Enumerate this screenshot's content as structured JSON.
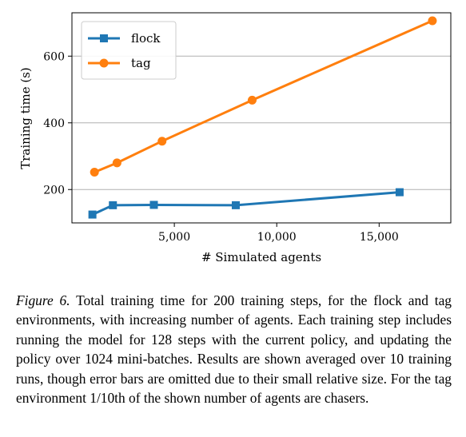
{
  "chart_data": {
    "type": "line",
    "xlabel": "# Simulated agents",
    "ylabel": "Training time (s)",
    "xlim": [
      0,
      18500
    ],
    "ylim": [
      100,
      730
    ],
    "xticks": [
      5000,
      10000,
      15000
    ],
    "xtick_labels": [
      "5,000",
      "10,000",
      "15,000"
    ],
    "yticks": [
      200,
      400,
      600
    ],
    "ytick_labels": [
      "200",
      "400",
      "600"
    ],
    "grid": "horizontal",
    "legend_position": "top-left",
    "series": [
      {
        "name": "flock",
        "color": "#1f77b4",
        "marker": "square",
        "x": [
          1000,
          2000,
          4000,
          8000,
          16000
        ],
        "y": [
          125,
          153,
          154,
          153,
          192
        ]
      },
      {
        "name": "tag",
        "color": "#ff7f0e",
        "marker": "circle",
        "x": [
          1100,
          2200,
          4400,
          8800,
          17600
        ],
        "y": [
          252,
          280,
          345,
          468,
          706
        ]
      }
    ]
  },
  "caption": {
    "label": "Figure 6.",
    "text": "Total training time for 200 training steps, for the flock and tag environments, with increasing number of agents. Each training step includes running the model for 128 steps with the current policy, and updating the policy over 1024 mini-batches. Results are shown averaged over 10 training runs, though error bars are omitted due to their small relative size. For the tag environment 1/10th of the shown number of agents are chasers."
  }
}
